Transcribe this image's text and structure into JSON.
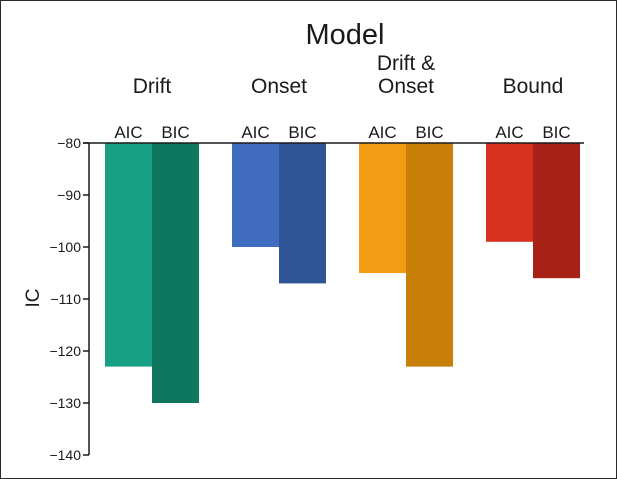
{
  "chart_data": {
    "type": "bar",
    "title": "Model",
    "ylabel": "IC",
    "xlabel": "",
    "ylim": [
      -140,
      -80
    ],
    "yticks": [
      -80,
      -90,
      -100,
      -110,
      -120,
      -130,
      -140
    ],
    "ytick_labels": [
      "−80",
      "−90",
      "−100",
      "−110",
      "−120",
      "−130",
      "−140"
    ],
    "categories": [
      "Drift",
      "Onset",
      "Drift &\nOnset",
      "Bound"
    ],
    "bar_labels": [
      "AIC",
      "BIC"
    ],
    "grid": false,
    "series": [
      {
        "values": [
          -123,
          -100,
          -105,
          -99
        ],
        "colors": [
          "#17a086",
          "#3f6cbf",
          "#f29c13",
          "#d7301f"
        ]
      },
      {
        "values": [
          -130,
          -107,
          -123,
          -106
        ],
        "colors": [
          "#0f7760",
          "#2e5596",
          "#c87f07",
          "#a72117"
        ]
      }
    ]
  }
}
